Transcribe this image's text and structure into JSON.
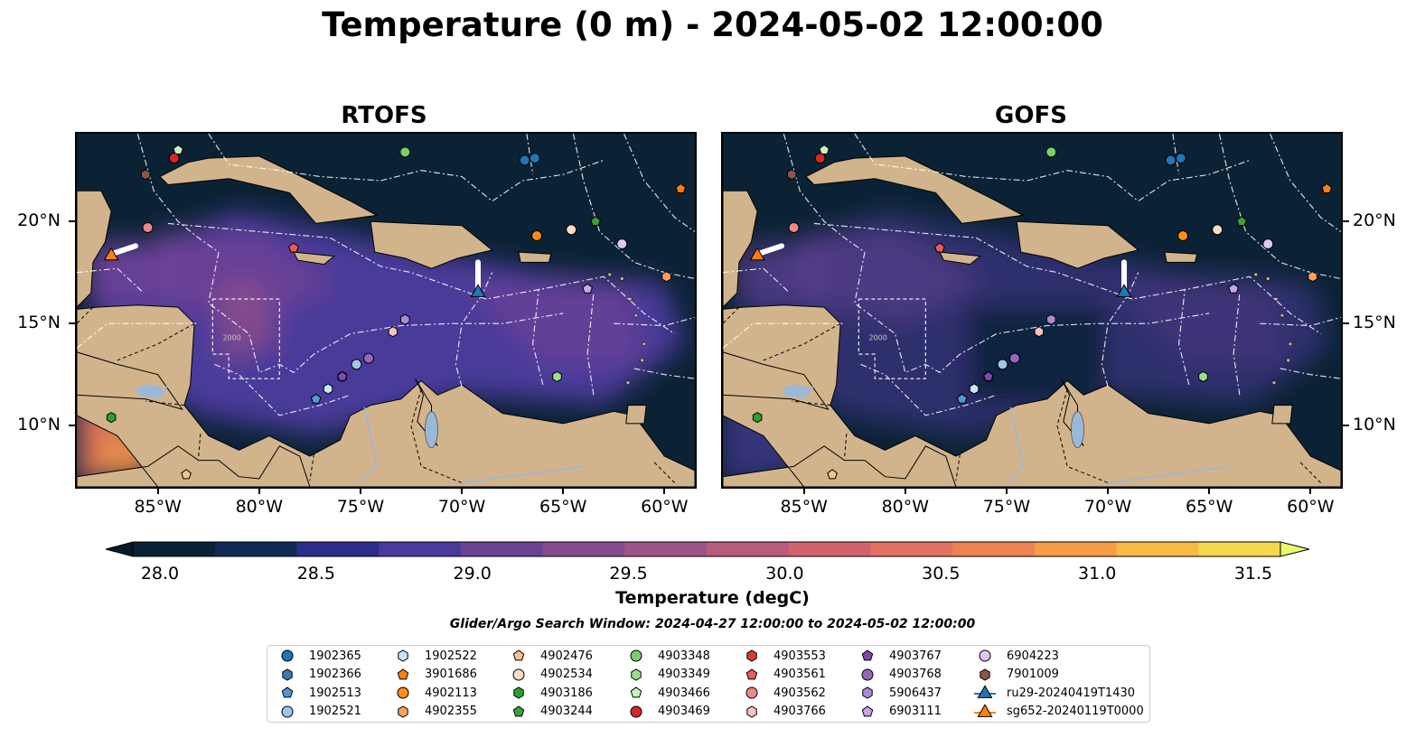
{
  "title": "Temperature (0 m) - 2024-05-02 12:00:00",
  "panels": [
    {
      "title": "RTOFS"
    },
    {
      "title": "GOFS"
    }
  ],
  "map": {
    "lon_range": [
      -89,
      -58.5
    ],
    "lat_range": [
      7,
      24.3
    ],
    "lon_ticks": [
      "85°W",
      "80°W",
      "75°W",
      "70°W",
      "65°W",
      "60°W"
    ],
    "lat_ticks": [
      "20°N",
      "15°N",
      "10°N"
    ],
    "colors": {
      "ocean_dark": "#0a2234",
      "land": "#d2b48c",
      "rivers": "#9ab8d8",
      "eez": "#ffffff"
    },
    "labels_iso": [
      "2000",
      "2000"
    ]
  },
  "colorbar": {
    "ticks": [
      "28.0",
      "28.5",
      "29.0",
      "29.5",
      "30.0",
      "30.5",
      "31.0",
      "31.5"
    ],
    "label": "Temperature (degC)",
    "range": [
      28.0,
      31.5
    ],
    "colors": [
      "#0b2235",
      "#102a53",
      "#2a2e86",
      "#4a3a9a",
      "#6a4296",
      "#854c8f",
      "#9f5487",
      "#b95c7c",
      "#d2636c",
      "#e47161",
      "#ef8251",
      "#f59c45",
      "#f8ba45",
      "#f5d849"
    ],
    "under_color": "#081a2a",
    "over_color": "#ebf96a"
  },
  "search_window": "Glider/Argo Search Window: 2024-04-27 12:00:00 to 2024-05-02 12:00:00",
  "legend": [
    {
      "label": "1902365",
      "marker": "circle",
      "color": "#1f77b4"
    },
    {
      "label": "1902366",
      "marker": "hexagon",
      "color": "#3a78b8"
    },
    {
      "label": "1902513",
      "marker": "pentagon",
      "color": "#4f95d8"
    },
    {
      "label": "1902521",
      "marker": "circle",
      "color": "#9ec6ea"
    },
    {
      "label": "1902522",
      "marker": "hexagon",
      "color": "#c9e6f7"
    },
    {
      "label": "3901686",
      "marker": "pentagon",
      "color": "#ff7f0e"
    },
    {
      "label": "4902113",
      "marker": "circle",
      "color": "#ff8c1a"
    },
    {
      "label": "4902355",
      "marker": "hexagon",
      "color": "#ffa05a"
    },
    {
      "label": "4902476",
      "marker": "pentagon",
      "color": "#fcc08a"
    },
    {
      "label": "4902534",
      "marker": "circle",
      "color": "#fcdcc0"
    },
    {
      "label": "4903186",
      "marker": "hexagon",
      "color": "#2ca02c"
    },
    {
      "label": "4903244",
      "marker": "pentagon",
      "color": "#3ca03a"
    },
    {
      "label": "4903348",
      "marker": "circle",
      "color": "#78d06a"
    },
    {
      "label": "4903349",
      "marker": "hexagon",
      "color": "#98e08a"
    },
    {
      "label": "4903466",
      "marker": "pentagon",
      "color": "#c8f2c0"
    },
    {
      "label": "4903469",
      "marker": "circle",
      "color": "#d62728"
    },
    {
      "label": "4903553",
      "marker": "hexagon",
      "color": "#d83a3a"
    },
    {
      "label": "4903561",
      "marker": "pentagon",
      "color": "#ea5a5a"
    },
    {
      "label": "4903562",
      "marker": "circle",
      "color": "#f08888"
    },
    {
      "label": "4903766",
      "marker": "hexagon",
      "color": "#f8c0c0"
    },
    {
      "label": "4903767",
      "marker": "pentagon",
      "color": "#7a4ba8"
    },
    {
      "label": "4903768",
      "marker": "circle",
      "color": "#9467bd"
    },
    {
      "label": "5906437",
      "marker": "hexagon",
      "color": "#a98ad6"
    },
    {
      "label": "6903111",
      "marker": "pentagon",
      "color": "#c5a8e8"
    },
    {
      "label": "6904223",
      "marker": "circle",
      "color": "#e0c4f4"
    },
    {
      "label": "7901009",
      "marker": "hexagon",
      "color": "#8c564b"
    },
    {
      "label": "ru29-20240419T1430",
      "marker": "triangle-line",
      "color": "#1f77b4"
    },
    {
      "label": "sg652-20240119T0000",
      "marker": "triangle-line",
      "color": "#ff7f0e"
    }
  ],
  "markers": [
    {
      "id": "1902365",
      "points": [
        [
          -66.9,
          23.0
        ],
        [
          -66.4,
          23.1
        ]
      ]
    },
    {
      "id": "1902366",
      "points": [
        [
          -75.9,
          12.4
        ]
      ]
    },
    {
      "id": "1902513",
      "points": [
        [
          -77.2,
          11.3
        ]
      ]
    },
    {
      "id": "1902521",
      "points": [
        [
          -75.2,
          13.0
        ]
      ]
    },
    {
      "id": "1902522",
      "points": [
        [
          -76.6,
          11.8
        ]
      ]
    },
    {
      "id": "3901686",
      "points": [
        [
          -59.2,
          21.6
        ]
      ]
    },
    {
      "id": "4902113",
      "points": [
        [
          -66.3,
          19.3
        ]
      ]
    },
    {
      "id": "4902355",
      "points": [
        [
          -59.9,
          17.3
        ]
      ]
    },
    {
      "id": "4902476",
      "points": [
        [
          -83.6,
          7.6
        ]
      ]
    },
    {
      "id": "4902534",
      "points": [
        [
          -64.6,
          19.6
        ]
      ]
    },
    {
      "id": "4903186",
      "points": [
        [
          -87.3,
          10.4
        ]
      ]
    },
    {
      "id": "4903244",
      "points": [
        [
          -63.4,
          20.0
        ]
      ]
    },
    {
      "id": "4903348",
      "points": [
        [
          -72.8,
          23.4
        ]
      ]
    },
    {
      "id": "4903349",
      "points": [
        [
          -65.3,
          12.4
        ]
      ]
    },
    {
      "id": "4903466",
      "points": [
        [
          -84.0,
          23.5
        ]
      ]
    },
    {
      "id": "4903469",
      "points": [
        [
          -84.2,
          23.1
        ]
      ]
    },
    {
      "id": "4903553",
      "points": [
        [
          -85.6,
          22.3
        ]
      ]
    },
    {
      "id": "4903561",
      "points": [
        [
          -78.3,
          18.7
        ]
      ]
    },
    {
      "id": "4903562",
      "points": [
        [
          -85.5,
          19.7
        ]
      ]
    },
    {
      "id": "4903766",
      "points": [
        [
          -73.4,
          14.6
        ]
      ]
    },
    {
      "id": "4903767",
      "points": [
        [
          -75.9,
          12.4
        ]
      ]
    },
    {
      "id": "4903768",
      "points": [
        [
          -74.6,
          13.3
        ]
      ]
    },
    {
      "id": "5906437",
      "points": [
        [
          -72.8,
          15.2
        ]
      ]
    },
    {
      "id": "6903111",
      "points": [
        [
          -63.8,
          16.7
        ]
      ]
    },
    {
      "id": "6904223",
      "points": [
        [
          -62.1,
          18.9
        ]
      ]
    },
    {
      "id": "7901009",
      "points": [
        [
          -85.6,
          22.3
        ]
      ]
    }
  ],
  "gliders": [
    {
      "id": "ru29-20240419T1430",
      "color": "#1f77b4",
      "track": [
        [
          -69.2,
          18.0
        ],
        [
          -69.2,
          16.6
        ]
      ]
    },
    {
      "id": "sg652-20240119T0000",
      "color": "#ff7f0e",
      "track": [
        [
          -86.1,
          18.8
        ],
        [
          -87.3,
          18.4
        ]
      ]
    }
  ]
}
